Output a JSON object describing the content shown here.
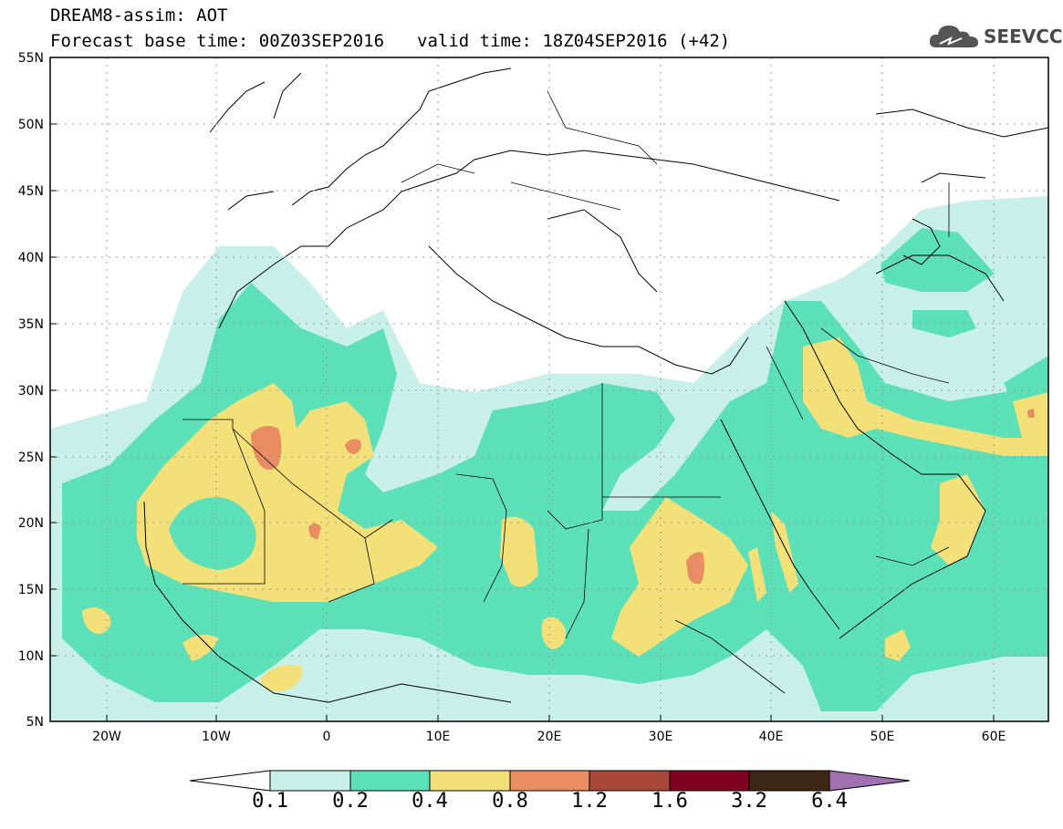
{
  "header": {
    "title_line1": "DREAM8-assim: AOT",
    "forecast_label": "Forecast base time: 00Z03SEP2016",
    "valid_label": "valid time: 18Z04SEP2016 (+42)"
  },
  "logo": {
    "icon": "cloud-icon",
    "text": "SEEVCCC"
  },
  "map": {
    "lon_range": [
      -25,
      65
    ],
    "lat_range": [
      5,
      55
    ],
    "lat_ticks": [
      "55N",
      "50N",
      "45N",
      "40N",
      "35N",
      "30N",
      "25N",
      "20N",
      "15N",
      "10N",
      "5N"
    ],
    "lon_ticks": [
      "20W",
      "10W",
      "0",
      "10E",
      "20E",
      "30E",
      "40E",
      "50E",
      "60E"
    ],
    "grid": "dotted"
  },
  "colorbar": {
    "levels": [
      "0.1",
      "0.2",
      "0.4",
      "0.8",
      "1.2",
      "1.6",
      "3.2",
      "6.4"
    ],
    "colors": [
      "#ffffff",
      "#c8f0e8",
      "#5ce0b8",
      "#f4e078",
      "#e88c64",
      "#a84838",
      "#800020",
      "#3c2814",
      "#a070b0"
    ]
  },
  "palette": {
    "aot_0_1": "#c8f0e8",
    "aot_0_2": "#5ce0b8",
    "aot_0_4": "#f4e078",
    "aot_0_8": "#e88c64"
  }
}
